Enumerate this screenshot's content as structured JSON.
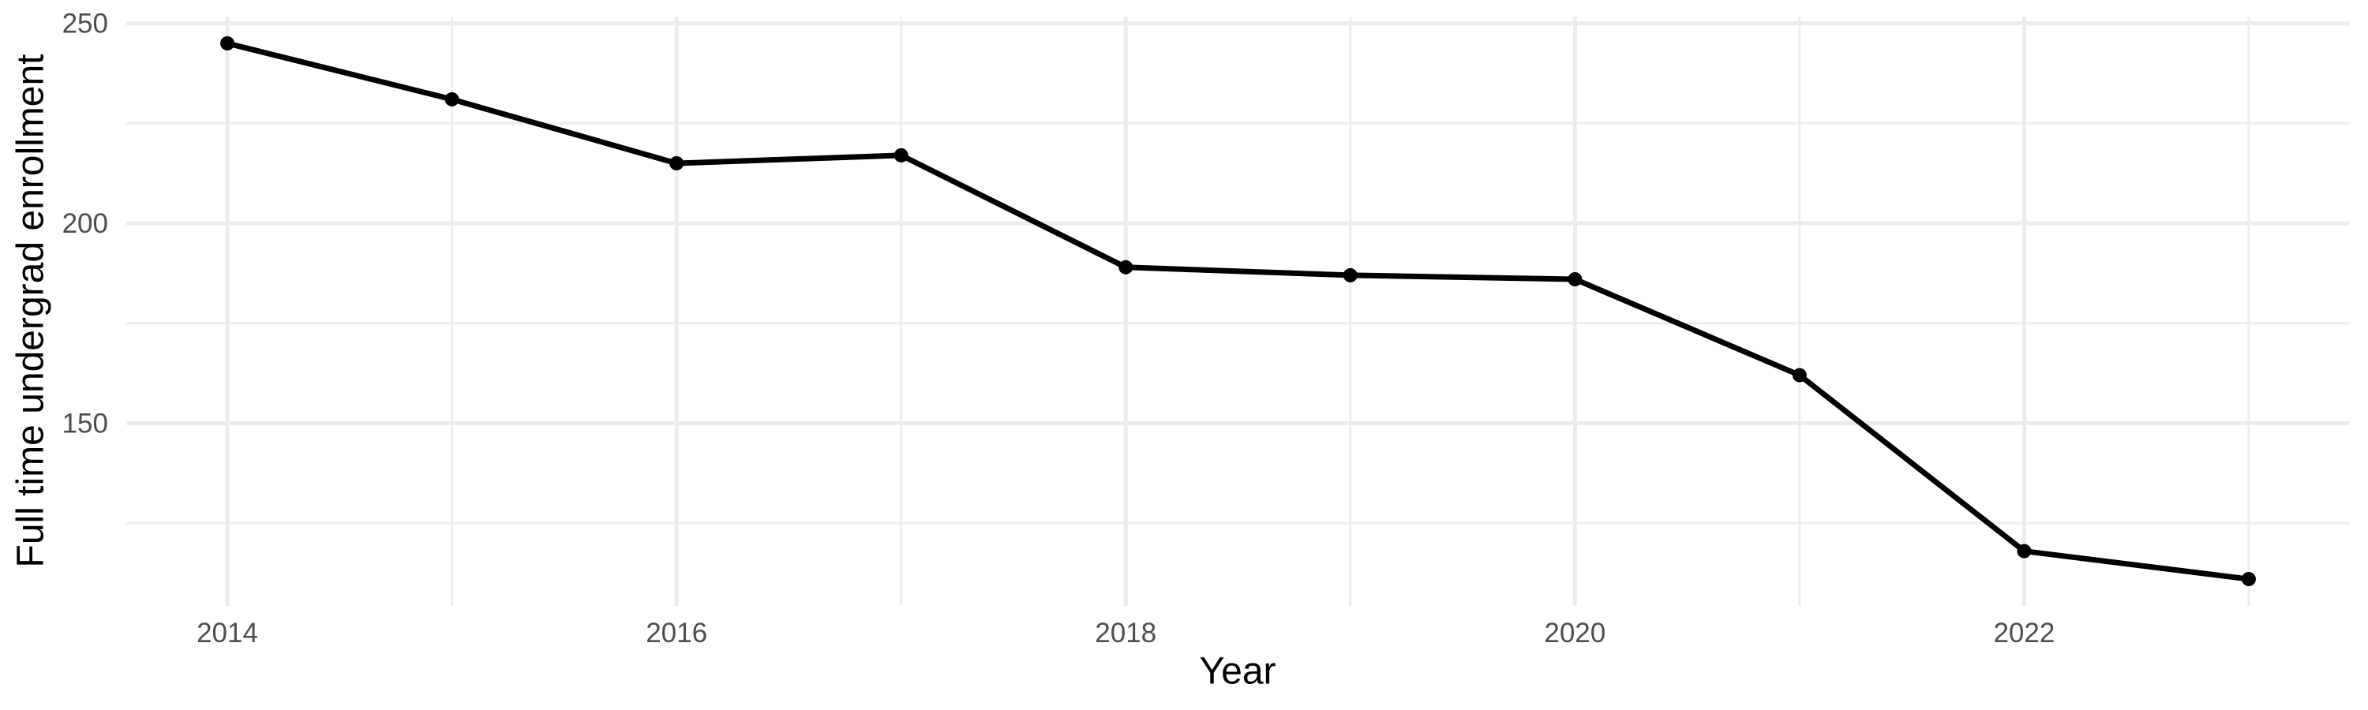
{
  "figure": {
    "background": "#FFFFFF"
  },
  "chart_data": {
    "type": "line",
    "title": "",
    "xlabel": "Year",
    "ylabel": "Full time undergrad enrollment",
    "series": [
      {
        "name": "Full time undergrad enrollment",
        "x": [
          2014,
          2015,
          2016,
          2017,
          2018,
          2019,
          2020,
          2021,
          2022,
          2023
        ],
        "values": [
          245,
          231,
          215,
          217,
          189,
          187,
          186,
          162,
          118,
          111
        ]
      }
    ],
    "x_ticks_major": {
      "values": [
        2014,
        2016,
        2018,
        2020,
        2022
      ],
      "labels": [
        "2014",
        "2016",
        "2018",
        "2020",
        "2022"
      ]
    },
    "x_ticks_minor": [
      2015,
      2017,
      2019,
      2021,
      2023
    ],
    "y_ticks_major": {
      "values": [
        250,
        200,
        150
      ],
      "labels": [
        "250",
        "200",
        "150"
      ]
    },
    "y_ticks_minor": [
      225,
      175,
      125
    ],
    "xlim": [
      2013.55,
      2023.45
    ],
    "ylim": [
      104.3,
      251.7
    ],
    "grid": "major+minor",
    "legend": "none",
    "marker": "point",
    "colors": {
      "line": "#000000",
      "point": "#000000",
      "grid_major": "#EBEBEB",
      "grid_minor": "#EDEDED",
      "tick_label": "#4D4D4D",
      "axis_title": "#000000",
      "background": "#FFFFFF"
    }
  }
}
